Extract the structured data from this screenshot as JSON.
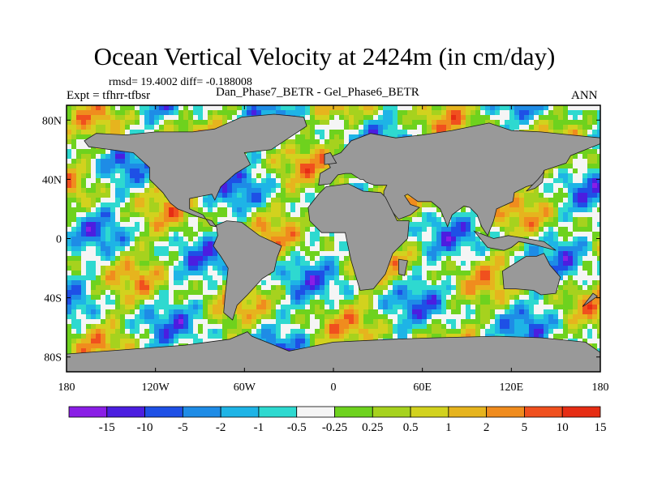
{
  "title": "Ocean Vertical Velocity at 2424m (in cm/day)",
  "stats": "rmsd= 19.4002 diff= -0.188008",
  "expt": "Expt = tfhrr-tfbsr",
  "subtitle": "Dan_Phase7_BETR - Gel_Phase6_BETR",
  "season": "ANN",
  "lat_labels": [
    "80N",
    "40N",
    "0",
    "40S",
    "80S"
  ],
  "lon_labels": [
    "180",
    "120W",
    "60W",
    "0",
    "60E",
    "120E",
    "180"
  ],
  "legend": {
    "colors": [
      "#8a1ee6",
      "#4b1ee0",
      "#1e50e6",
      "#1e8ce6",
      "#1eb4e6",
      "#2ed9d0",
      "#f5f5f5",
      "#6ed21e",
      "#a6d21e",
      "#d2d21e",
      "#e6b41e",
      "#f08c1e",
      "#f0501e",
      "#e62d14"
    ],
    "labels": [
      "-15",
      "-10",
      "-5",
      "-2",
      "-1",
      "-0.5",
      "-0.25",
      "0.25",
      "0.5",
      "1",
      "2",
      "5",
      "10",
      "15"
    ]
  },
  "colors": {
    "land": "#999999",
    "coast": "#1a1a1a"
  }
}
